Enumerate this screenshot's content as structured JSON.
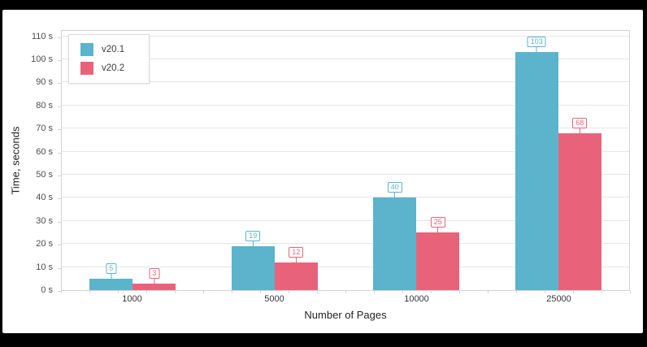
{
  "window": {
    "background": "#000000",
    "panel_background": "#ffffff"
  },
  "chart_data": {
    "type": "bar",
    "title": "",
    "categories": [
      "1000",
      "5000",
      "10000",
      "25000"
    ],
    "series": [
      {
        "name": "v20.1",
        "color": "#5bb4cb",
        "values": [
          5,
          19,
          40,
          103
        ]
      },
      {
        "name": "v20.2",
        "color": "#e8637a",
        "values": [
          3,
          12,
          25,
          68
        ]
      }
    ],
    "xlabel": "Number of Pages",
    "ylabel": "Time, seconds",
    "ylim": [
      0,
      113
    ],
    "y_ticks": [
      0,
      10,
      20,
      30,
      40,
      50,
      60,
      70,
      80,
      90,
      100,
      110
    ],
    "y_tick_labels": [
      "0 s",
      "10 s",
      "20 s",
      "30 s",
      "40 s",
      "50 s",
      "60 s",
      "70 s",
      "80 s",
      "90 s",
      "100 s",
      "110 s"
    ],
    "grid": "horizontal",
    "legend_position": "inside-top-left",
    "data_labels": "each bar has its value in a boxed callout above the bar, text and border in series color"
  },
  "legend": {
    "items": [
      {
        "label": "v20.1",
        "color": "#5bb4cb"
      },
      {
        "label": "v20.2",
        "color": "#e8637a"
      }
    ]
  },
  "colors": {
    "gridline": "#e6e6e6",
    "axis_line": "#d3d3d3",
    "y_tick_text": "#4d4d4d",
    "category_text": "#363636",
    "axis_title_text": "#232323"
  }
}
